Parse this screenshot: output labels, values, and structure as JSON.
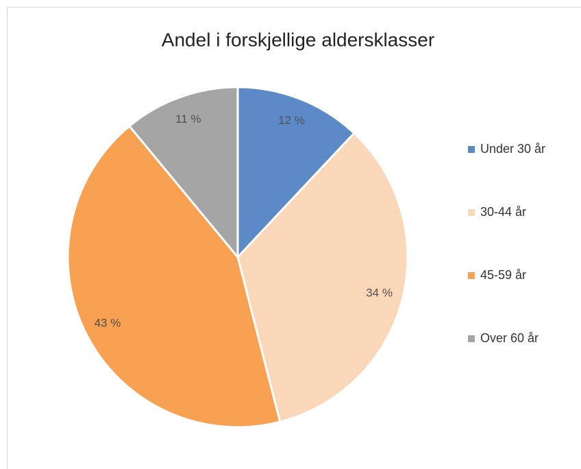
{
  "chart_data": {
    "type": "pie",
    "title": "Andel i forskjellige aldersklasser",
    "categories": [
      "Under 30 år",
      "30-44 år",
      "45-59 år",
      "Over 60 år"
    ],
    "values": [
      12,
      34,
      43,
      11
    ],
    "value_labels": [
      "12 %",
      "34 %",
      "43 %",
      "11 %"
    ],
    "colors": [
      "#5b8ac6",
      "#fbd7b9",
      "#f8a153",
      "#a5a5a5"
    ],
    "legend": "right"
  }
}
